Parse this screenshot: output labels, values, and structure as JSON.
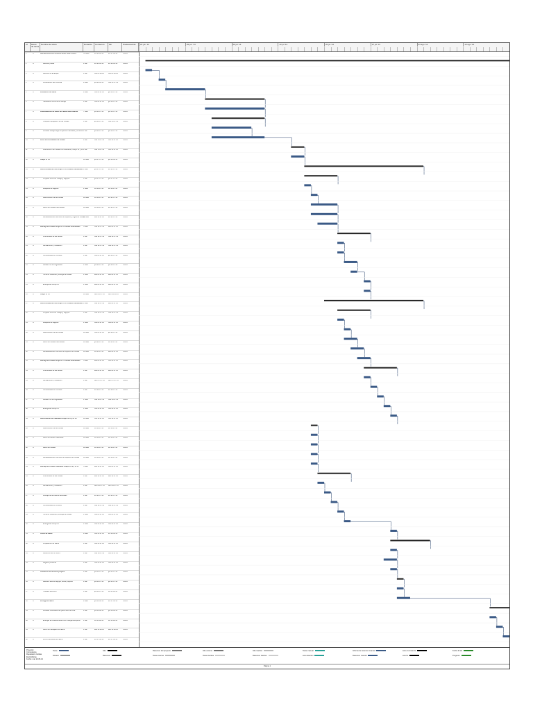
{
  "columns": {
    "id": "Id",
    "mode": "Modo de tarea",
    "name": "Nombre de tarea",
    "duration": "Duración",
    "start": "Comienzo",
    "finish": "Fin",
    "predecessors": "Predecesoras"
  },
  "timeline": [
    "22 jun '14",
    "29 jun '14",
    "06 jul '14",
    "13 jul '14",
    "20 jul '14",
    "27 jul '14",
    "03 ago '14",
    "10 ago '14"
  ],
  "tasks": [
    {
      "id": "1",
      "name": "REPARACION DE CELDAS ELECTROLITICAS",
      "dur": "51 días?",
      "start": "lun 23.06.14",
      "finish": "lun 17.08.14",
      "pred": "0.00%",
      "summary": true
    },
    {
      "id": "2",
      "name": "Reunión previa",
      "dur": "1 día",
      "start": "lun 23.06.14",
      "finish": "lun 23.06.14",
      "pred": "0.00%"
    },
    {
      "id": "3",
      "name": "Reunión de arranque",
      "dur": "1 día",
      "start": "mié 25.06.14",
      "finish": "mié 25.06.14",
      "pred": "0.00%"
    },
    {
      "id": "4",
      "name": "Acreditación del Personal",
      "dur": "4 días",
      "start": "jue 26.06.14",
      "finish": "mar 01.07.14",
      "pred": "0.00%"
    },
    {
      "id": "5",
      "name": "Instalación de faena",
      "dur": "4 días",
      "start": "mié 02.07.14",
      "finish": "jue 10.07.14",
      "pred": "0.00%",
      "summary": true
    },
    {
      "id": "6",
      "name": "Habilitación de Zona de trabajo",
      "dur": "1 día",
      "start": "mié 02.07.14",
      "finish": "jue 10.07.14",
      "pred": "0.00%"
    },
    {
      "id": "7",
      "name": "Levantamiento de datos de celdas electrolíticas",
      "dur": "7 días",
      "start": "jue 03.07.14",
      "finish": "jue 10.07.14",
      "pred": "0.00%",
      "summary": true
    },
    {
      "id": "8",
      "name": "Chequeo topográfico de las Celdas",
      "dur": "1 día",
      "start": "jue 03.07.14",
      "finish": "mar 08.07.14",
      "pred": "0.00%"
    },
    {
      "id": "9",
      "name": "Levantar trabajo según inspección actuales y rectificar",
      "dur": "1 día",
      "start": "jue 03.07.14",
      "finish": "jue 10.07.14",
      "pred": "0.00%"
    },
    {
      "id": "10",
      "name": "Inicio de Actividades de Celdas",
      "dur": "1 día",
      "start": "mar 15.07.14",
      "finish": "mié 16.07.14",
      "pred": "0.00%",
      "summary": true
    },
    {
      "id": "11",
      "name": "Planificación de Parada con Mandante, Grupo 16 y 18",
      "dur": "1 día",
      "start": "mar 15.07.14",
      "finish": "mié 16.07.14",
      "pred": "0.00%"
    },
    {
      "id": "12",
      "name": "Grupo N° 16",
      "dur": "12 días",
      "start": "jue 17.07.14",
      "finish": "jue 03.08.14",
      "pred": "0.00%",
      "summary": true
    },
    {
      "id": "13",
      "name": "Desconsolidación del Grupo N°16 Celdas Intermedias",
      "dur": "4 días",
      "start": "jue 17.07.14",
      "finish": "lun 21.07.14",
      "pred": "0.00%",
      "summary": true
    },
    {
      "id": "14",
      "name": "Preparar Zona de Trabajo y equipos",
      "dur": "1 día",
      "start": "jue 17.07.14",
      "finish": "jue 17.07.14",
      "pred": "0.00%"
    },
    {
      "id": "15",
      "name": "Bloqueos de equipos",
      "dur": "1 hora",
      "start": "vie 18.07.14",
      "finish": "vie 18.07.14",
      "pred": "0.00%"
    },
    {
      "id": "16",
      "name": "Desconexión de las Celdas",
      "dur": "12 días",
      "start": "vie 18.07.14",
      "finish": "lun 21.07.14",
      "pred": "0.00%"
    },
    {
      "id": "17",
      "name": "Retiro de Celdas intermedias",
      "dur": "12 días",
      "start": "vie 18.07.14",
      "finish": "lun 21.07.14",
      "pred": "0.00%"
    },
    {
      "id": "18",
      "name": "Rehabilitaciones Menores de soportes y vigas de Celdas",
      "dur": "12 días",
      "start": "sáb 19.07.14",
      "finish": "lun 21.07.14",
      "pred": "0.00%"
    },
    {
      "id": "19",
      "name": "Montaje de Celdas Grupo N°16 Celdas Intermedias",
      "dur": "5 días",
      "start": "mar 22.07.14",
      "finish": "sáb 26.07.14",
      "pred": "0.00%",
      "summary": true
    },
    {
      "id": "20",
      "name": "Posicionado de las celdas",
      "dur": "1 día",
      "start": "mar 22.07.14",
      "finish": "mar 22.07.14",
      "pred": "0.00%"
    },
    {
      "id": "21",
      "name": "Alineamiento y Nivelación",
      "dur": "1 día",
      "start": "mar 22.07.14",
      "finish": "mar 22.07.14",
      "pred": "0.00%"
    },
    {
      "id": "22",
      "name": "Conexionado de Circuitos",
      "dur": "1 día",
      "start": "mié 23.07.14",
      "finish": "jue 24.07.14",
      "pred": "0.00%"
    },
    {
      "id": "23",
      "name": "Lavado con la fungibilidad",
      "dur": "1 hora",
      "start": "jue 24.07.14",
      "finish": "jue 24.07.14",
      "pred": "0.00%"
    },
    {
      "id": "24",
      "name": "Toma de muestras y entrega de celdas",
      "dur": "1 hora",
      "start": "sáb 26.07.14",
      "finish": "sáb 26.07.14",
      "pred": "0.00%"
    },
    {
      "id": "25",
      "name": "Entrega del Grupo 16",
      "dur": "1 hora",
      "start": "sáb 26.07.14",
      "finish": "sáb 26.07.14",
      "pred": "0.00%"
    },
    {
      "id": "26",
      "name": "Grupo N° 15",
      "dur": "12 días",
      "start": "dom 20.07.14",
      "finish": "dom 03.08.14",
      "pred": "0.00%",
      "summary": true
    },
    {
      "id": "27",
      "name": "Desconsolidación del Grupo N°15 Celdas Intermedias",
      "dur": "4 días",
      "start": "mar 22.07.14",
      "finish": "sáb 26.07.14",
      "pred": "0.00%",
      "summary": true
    },
    {
      "id": "28",
      "name": "Preparar Zona de Trabajo y equipos",
      "dur": "1 día",
      "start": "mar 22.07.14",
      "finish": "mar 22.07.14",
      "pred": "0.00%"
    },
    {
      "id": "29",
      "name": "Bloqueos de equipos",
      "dur": "1 hora",
      "start": "mié 23.07.14",
      "finish": "mié 23.07.14",
      "pred": "0.00%"
    },
    {
      "id": "30",
      "name": "Desconexión de las Celdas",
      "dur": "12 días",
      "start": "mié 23.07.14",
      "finish": "jue 24.07.14",
      "pred": "0.00%"
    },
    {
      "id": "31",
      "name": "Retiro de Celdas intermedias",
      "dur": "12 días",
      "start": "jue 24.07.14",
      "finish": "vie 25.07.14",
      "pred": "0.00%"
    },
    {
      "id": "32",
      "name": "Rehabilitaciones menores de soportes de Celdas",
      "dur": "12 días",
      "start": "vie 25.07.14",
      "finish": "sáb 26.07.14",
      "pred": "0.00%"
    },
    {
      "id": "33",
      "name": "Montaje de Celdas Grupo N°15 Celdas Intermedias",
      "dur": "5 días",
      "start": "sáb 26.07.14",
      "finish": "mié 30.07.14",
      "pred": "0.00%",
      "summary": true
    },
    {
      "id": "34",
      "name": "Posicionado de las celdas",
      "dur": "1 día",
      "start": "sáb 26.07.14",
      "finish": "sáb 26.07.14",
      "pred": "0.00%"
    },
    {
      "id": "35",
      "name": "Alineamiento y Nivelación",
      "dur": "1 día",
      "start": "dom 27.07.14",
      "finish": "dom 27.07.14",
      "pred": "0.00%"
    },
    {
      "id": "36",
      "name": "Conexionado de Circuitos",
      "dur": "1 día",
      "start": "lun 28.07.14",
      "finish": "lun 28.07.14",
      "pred": "0.00%"
    },
    {
      "id": "37",
      "name": "Lavado con la fungibilidad",
      "dur": "1 hora",
      "start": "mar 29.07.14",
      "finish": "mar 29.07.14",
      "pred": "0.00%"
    },
    {
      "id": "38",
      "name": "Entrega del Grupo 15",
      "dur": "1 hora",
      "start": "mié 30.07.14",
      "finish": "mié 30.07.14",
      "pred": "0.00%"
    },
    {
      "id": "39",
      "name": "Desconexión de Cabezales Grupo N°16 y N°15",
      "dur": "12 días",
      "start": "mié 18.07.14",
      "finish": "mié 18.07.14",
      "pred": "0.00%",
      "summary": true
    },
    {
      "id": "40",
      "name": "Desconexión de las Celdas",
      "dur": "12 días",
      "start": "vie 18.07.14",
      "finish": "vie 18.07.14",
      "pred": "0.00%"
    },
    {
      "id": "41",
      "name": "Retiro de Barras Cabezales",
      "dur": "12 días",
      "start": "vie 18.07.14",
      "finish": "vie 18.07.14",
      "pred": "0.00%"
    },
    {
      "id": "42",
      "name": "Retiro de Celdas",
      "dur": "12 días",
      "start": "vie 18.07.14",
      "finish": "vie 18.07.14",
      "pred": "0.00%"
    },
    {
      "id": "43",
      "name": "Rehabilitaciones menores de soportes de Celdas",
      "dur": "12 días",
      "start": "vie 18.07.14",
      "finish": "vie 18.07.14",
      "pred": "0.00%"
    },
    {
      "id": "44",
      "name": "Montaje de Celdas Cabezales Grupo N°16 y N°15",
      "dur": "5 días",
      "start": "sáb 19.07.14",
      "finish": "mié 23.07.14",
      "pred": "0.00%",
      "summary": true
    },
    {
      "id": "45",
      "name": "Posicionado de las Celdas",
      "dur": "1 día",
      "start": "sáb 19.07.14",
      "finish": "sáb 19.07.14",
      "pred": "0.00%"
    },
    {
      "id": "46",
      "name": "Alineamiento y Nivelación",
      "dur": "1 día",
      "start": "dom 20.07.14",
      "finish": "dom 20.07.14",
      "pred": "0.00%"
    },
    {
      "id": "47",
      "name": "Montaje de las barras cabezales",
      "dur": "1 día",
      "start": "lun 21.07.14",
      "finish": "lun 21.07.14",
      "pred": "0.00%"
    },
    {
      "id": "48",
      "name": "Conexionado de circuitos",
      "dur": "1 día",
      "start": "mar 22.07.14",
      "finish": "mar 22.07.14",
      "pred": "0.00%"
    },
    {
      "id": "49",
      "name": "Toma de muestras y entrega de celdas",
      "dur": "1 hora",
      "start": "mié 23.07.14",
      "finish": "mié 23.07.14",
      "pred": "0.00%"
    },
    {
      "id": "50",
      "name": "Entrega del Grupo 16",
      "dur": "1 hora",
      "start": "mié 30.07.14",
      "finish": "mié 30.07.14",
      "pred": "0.00%"
    },
    {
      "id": "51",
      "name": "Cierre de faena",
      "dur": "4 días",
      "start": "mié 30.07.14",
      "finish": "lun 04.08.14",
      "pred": "0.00%",
      "summary": true
    },
    {
      "id": "52",
      "name": "Preparación de faena",
      "dur": "1 día",
      "start": "mié 30.07.14",
      "finish": "mié 30.07.14",
      "pred": "0.00%"
    },
    {
      "id": "53",
      "name": "Detección de No SSAS",
      "dur": "1 día",
      "start": "mar 29.07.14",
      "finish": "mié 30.07.14",
      "pred": "0.00%"
    },
    {
      "id": "54",
      "name": "Registro personal",
      "dur": "1 día",
      "start": "mié 30.07.14",
      "finish": "mié 30.07.14",
      "pred": "0.00%"
    },
    {
      "id": "55",
      "name": "Liberación de terrenos propios",
      "dur": "1 día",
      "start": "jue 31.07.14",
      "finish": "jue 31.07.14",
      "pred": "0.00%",
      "summary": true
    },
    {
      "id": "56",
      "name": "Revisión entorno apoyar, riente proyecto",
      "dur": "1 día",
      "start": "jue 31.07.14",
      "finish": "jue 31.07.14",
      "pred": "0.00%"
    },
    {
      "id": "57",
      "name": "Traslado a terreno",
      "dur": "1 día",
      "start": "jue 31.07.14",
      "finish": "vie 01.08.14",
      "pred": "0.00%"
    },
    {
      "id": "58",
      "name": "Entrega de faena",
      "dur": "4 días",
      "start": "jue 14.08.14",
      "finish": "lun 17.08.14",
      "pred": "0.00%",
      "summary": true
    },
    {
      "id": "59",
      "name": "Levantar observaciones para mano de obra",
      "dur": "1 día",
      "start": "jue 14.08.14",
      "finish": "jue 14.08.14",
      "pred": "0.00%"
    },
    {
      "id": "60",
      "name": "Entregar de observaciones con entrega Recepción",
      "dur": "1 día",
      "start": "vie 15.08.14",
      "finish": "vie 15.08.14",
      "pred": "0.00%"
    },
    {
      "id": "61",
      "name": "Retiro de trabajador de faena",
      "dur": "1 día",
      "start": "sáb 16.08.14",
      "finish": "sáb 16.08.14",
      "pred": "0.00%"
    },
    {
      "id": "62",
      "name": "Informe actividad de faena",
      "dur": "1 día",
      "start": "lun 17.08.14",
      "finish": "lun 17.08.14",
      "pred": "0.00%"
    }
  ],
  "legend": {
    "project": "Proyecto: Cronograma Reparación Celdas Electrolíticas",
    "date": "Fecha: mar 24.06.14",
    "items": [
      "Tarea",
      "División",
      "Hito",
      "Resumen",
      "Resumen del proyecto",
      "Tarea externa",
      "Hito externo",
      "Tarea inactiva",
      "Hito inactivo",
      "Resumen inactivo",
      "Tarea manual",
      "solo duración",
      "Informe de resumen manual",
      "Resumen manual",
      "solo el comienzo",
      "solo fin",
      "Fecha límite",
      "Progreso"
    ]
  },
  "footer": "Página 1",
  "colors": {
    "bar": "#3b5a86",
    "summary": "#222222",
    "progress": "#2aa198",
    "link": "#1f3b66"
  }
}
